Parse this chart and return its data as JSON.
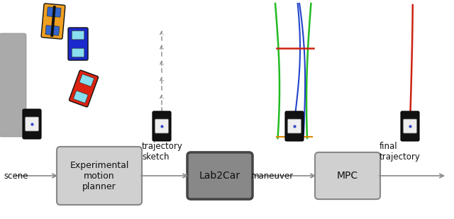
{
  "bg_color": "#ffffff",
  "figsize": [
    6.4,
    3.09
  ],
  "dpi": 100,
  "barrier_color": "#aaaaaa",
  "barrier_edge": "#888888",
  "car_ego_body": "#111111",
  "car_ego_roof": "#cccccc",
  "car_yellow_body": "#f0a020",
  "car_yellow_stripe": "#000000",
  "car_yellow_window": "#3366cc",
  "car_blue_body": "#2233cc",
  "car_blue_window": "#88ddee",
  "car_red_body": "#dd2211",
  "car_red_window": "#88ddee",
  "arrow_sketch_color": "#888888",
  "green_color": "#22bb22",
  "blue_traj_color": "#2244cc",
  "red_line_color": "#cc2211",
  "orange_line_color": "#dd8800",
  "box_light_fc": "#d0d0d0",
  "box_light_ec": "#888888",
  "box_dark_fc": "#888888",
  "box_dark_ec": "#444444",
  "flow_arrow_color": "#888888",
  "text_color": "#111111",
  "scene_label": "scene",
  "traj_sketch_label": "trajectory\nsketch",
  "maneuver_label": "maneuver",
  "final_traj_label": "final\ntrajectory",
  "box1_label": "Experimental\nmotion\nplanner",
  "box2_label": "Lab2Car",
  "box3_label": "MPC",
  "xlim": [
    0,
    640
  ],
  "ylim": [
    0,
    309
  ]
}
